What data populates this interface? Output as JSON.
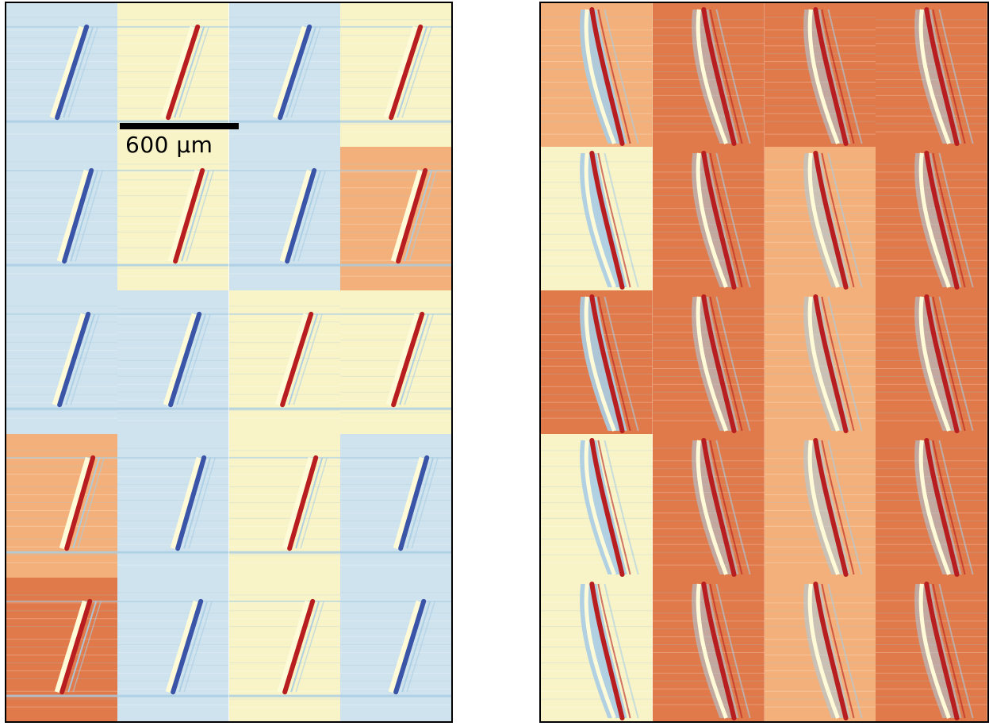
{
  "scale_bar": {
    "label": "600 µm"
  },
  "colors": {
    "blue_bg": "#cfe3ee",
    "pale_bg": "#f8f4c8",
    "orange_bg": "#f3b07a",
    "red_bg": "#e07a4a",
    "deep_red": "#b81e20",
    "deep_blue": "#3a55a8",
    "light_blue": "#a9cde4",
    "streak_light": "#fffbd8"
  },
  "left_panel": {
    "tiles": [
      [
        "blue",
        "pale",
        "blue",
        "pale"
      ],
      [
        "blue",
        "pale",
        "blue",
        "orange"
      ],
      [
        "blue",
        "blue",
        "pale",
        "pale"
      ],
      [
        "orange",
        "blue",
        "pale",
        "blue"
      ],
      [
        "red",
        "blue",
        "pale",
        "blue"
      ]
    ]
  },
  "right_panel": {
    "tiles": [
      [
        "orange",
        "red",
        "red",
        "red"
      ],
      [
        "pale",
        "red",
        "orange",
        "red"
      ],
      [
        "red",
        "red",
        "orange",
        "red"
      ],
      [
        "pale",
        "red",
        "orange",
        "red"
      ],
      [
        "pale",
        "red",
        "orange",
        "red"
      ]
    ]
  }
}
